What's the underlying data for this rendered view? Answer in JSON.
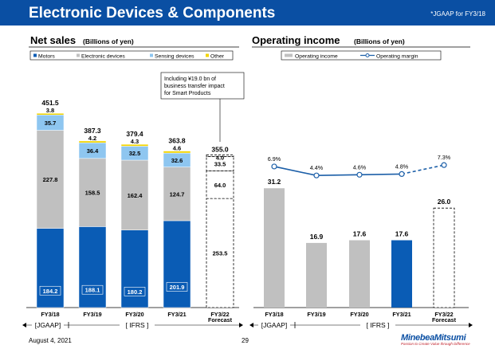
{
  "header": {
    "title": "Electronic Devices & Components",
    "note": "*JGAAP for FY3/18"
  },
  "footer": {
    "date": "August 4, 2021",
    "page": "29",
    "logo": "MinebeaMitsumi",
    "tagline": "Passion to Create Value through Difference"
  },
  "left_panel": {
    "title": "Net sales",
    "subtitle": "(Billions of yen)",
    "annotation": [
      "Including ¥19.0 bn of",
      "business transfer impact",
      "for Smart Products"
    ],
    "period_labels": [
      "[JGAAP]",
      "[ IFRS ]"
    ]
  },
  "right_panel": {
    "title": "Operating income",
    "subtitle": "(Billions of yen)",
    "period_labels": [
      "[JGAAP]",
      "[ IFRS ]"
    ]
  },
  "colors": {
    "motors": "#0a5cb5",
    "electronic": "#c0c0c0",
    "sensing": "#8ec6f0",
    "other": "#f2d400",
    "line": "#1c5fa8"
  },
  "chart_data": [
    {
      "type": "bar",
      "stacked": true,
      "title": "Net sales",
      "subtitle": "(Billions of yen)",
      "categories": [
        "FY3/18",
        "FY3/19",
        "FY3/20",
        "FY3/21",
        "FY3/22"
      ],
      "category_sublabels": [
        "",
        "",
        "",
        "",
        "Forecast"
      ],
      "series": [
        {
          "name": "Motors",
          "values": [
            184.2,
            188.1,
            180.2,
            201.9,
            253.5
          ]
        },
        {
          "name": "Electronic devices",
          "values": [
            227.8,
            158.5,
            162.4,
            124.7,
            64.0
          ]
        },
        {
          "name": "Sensing devices",
          "values": [
            35.7,
            36.4,
            32.5,
            32.6,
            33.5
          ]
        },
        {
          "name": "Other",
          "values": [
            3.8,
            4.2,
            4.3,
            4.6,
            4.0
          ]
        }
      ],
      "totals": [
        451.5,
        387.3,
        379.4,
        363.8,
        355.0
      ],
      "forecast_index": 4,
      "legend_position": "top"
    },
    {
      "type": "bar",
      "title": "Operating income",
      "subtitle": "(Billions of yen)",
      "categories": [
        "FY3/18",
        "FY3/19",
        "FY3/20",
        "FY3/21",
        "FY3/22"
      ],
      "category_sublabels": [
        "",
        "",
        "",
        "",
        "Forecast"
      ],
      "series": [
        {
          "name": "Operating income",
          "values": [
            31.2,
            16.9,
            17.6,
            17.6,
            26.0
          ]
        },
        {
          "name": "Operating margin",
          "type": "line",
          "values": [
            6.9,
            4.4,
            4.6,
            4.8,
            7.3
          ],
          "labels": [
            "6.9%",
            "4.4%",
            "4.6%",
            "4.8%",
            "7.3%"
          ]
        }
      ],
      "forecast_index": 4,
      "legend_position": "top"
    }
  ]
}
